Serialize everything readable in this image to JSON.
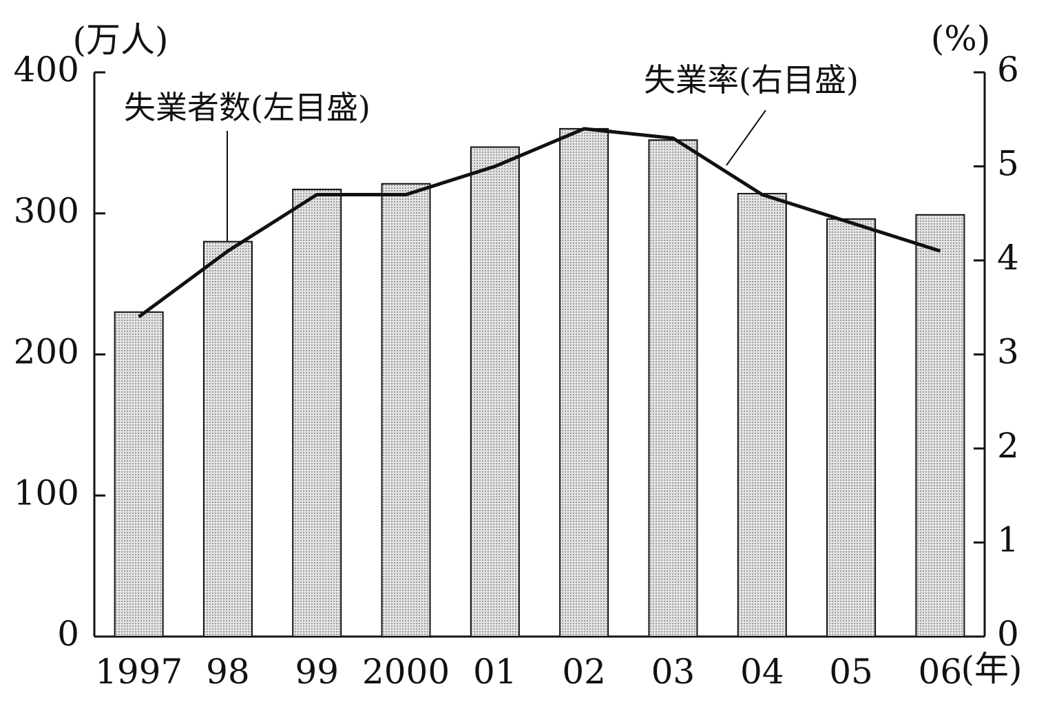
{
  "chart_data": {
    "type": "bar",
    "categories": [
      "1997",
      "98",
      "99",
      "2000",
      "01",
      "02",
      "03",
      "04",
      "05",
      "06"
    ],
    "series": [
      {
        "name": "失業者数(左目盛)",
        "type": "bar",
        "color": "#cdcdcd",
        "values": [
          230,
          280,
          317,
          321,
          347,
          360,
          352,
          314,
          296,
          299
        ]
      },
      {
        "name": "失業率(右目盛)",
        "type": "line",
        "axis": "y2",
        "color": "#111111",
        "values": [
          3.4,
          4.1,
          4.7,
          4.7,
          5.0,
          5.4,
          5.3,
          4.7,
          4.4,
          4.1
        ]
      }
    ],
    "ylim": [
      0,
      400
    ],
    "yticks": [
      0,
      100,
      200,
      300,
      400
    ],
    "y2lim": [
      0,
      6
    ],
    "y2ticks": [
      0,
      1,
      2,
      3,
      4,
      5,
      6
    ],
    "y_unit": "(万人)",
    "y2_unit": "(%)",
    "x_unit": "(年)"
  }
}
